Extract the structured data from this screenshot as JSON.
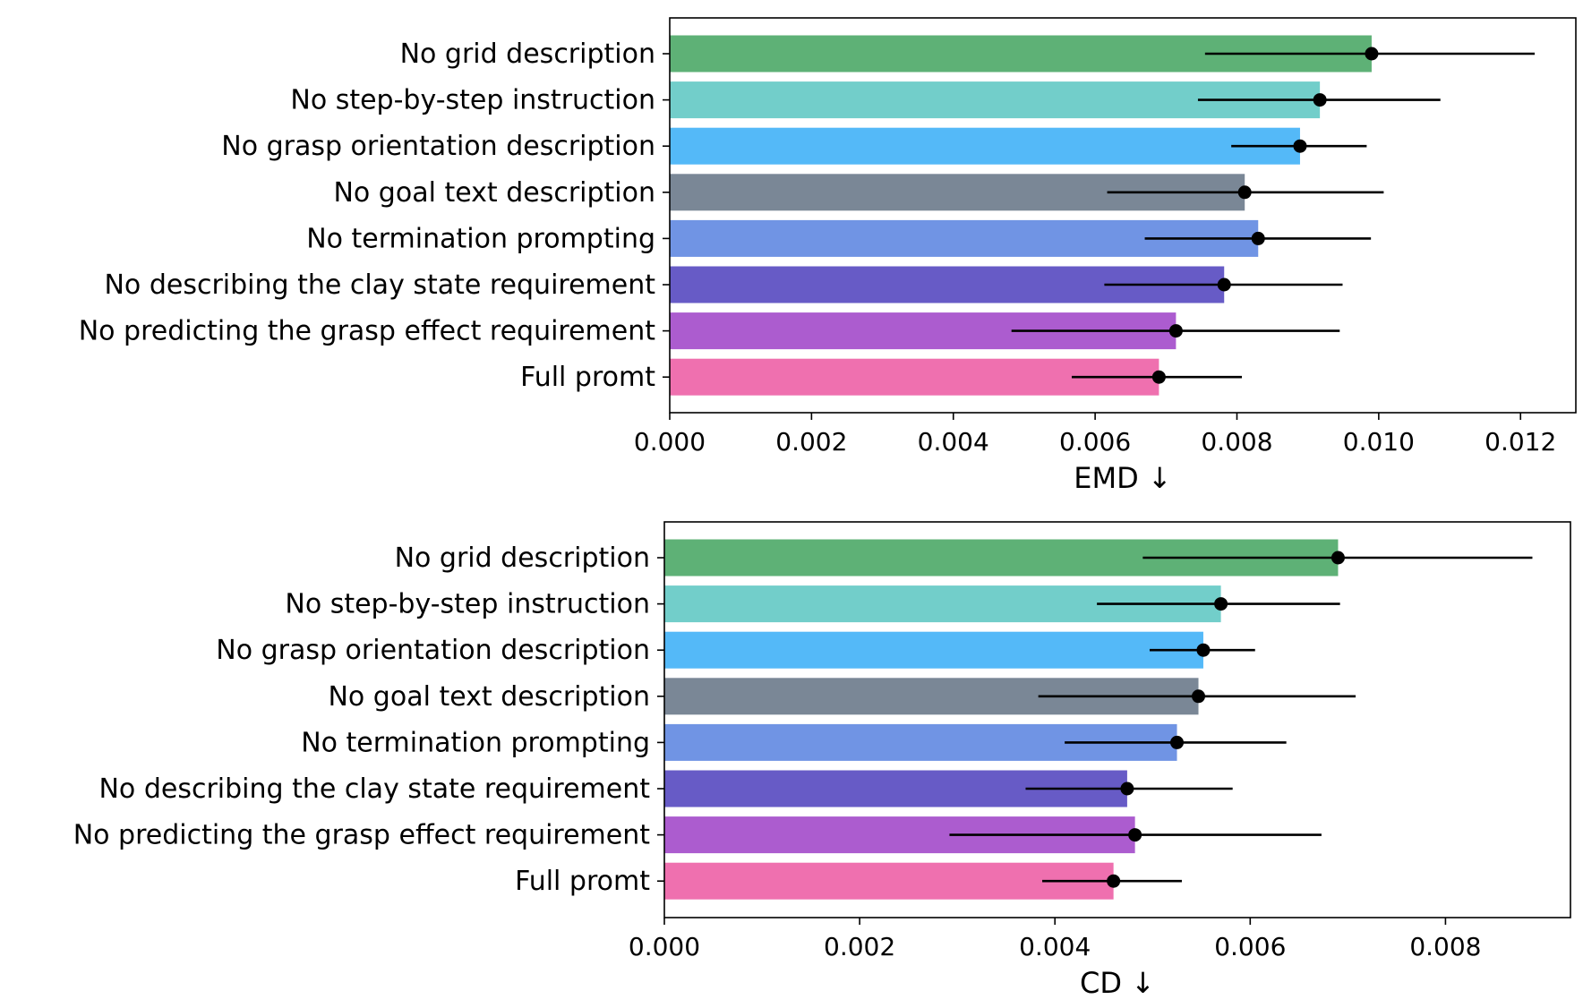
{
  "chart_data": [
    {
      "type": "bar",
      "orientation": "horizontal",
      "xlabel": "EMD ↓",
      "xlim": [
        0,
        0.01278
      ],
      "xticks": [
        "0.000",
        "0.002",
        "0.004",
        "0.006",
        "0.008",
        "0.010",
        "0.012"
      ],
      "xtick_values": [
        0,
        0.002,
        0.004,
        0.006,
        0.008,
        0.01,
        0.012
      ],
      "categories": [
        "No grid description",
        "No step-by-step instruction",
        "No grasp orientation description",
        "No goal text description",
        "No termination prompting",
        "No describing the clay state requirement",
        "No predicting the grasp effect requirement",
        "Full promt"
      ],
      "values": [
        0.0099,
        0.00917,
        0.00889,
        0.00811,
        0.0083,
        0.00782,
        0.00714,
        0.0069
      ],
      "error_low": [
        0.00755,
        0.00745,
        0.00792,
        0.00617,
        0.0067,
        0.00613,
        0.00482,
        0.00567
      ],
      "error_high": [
        0.0122,
        0.01087,
        0.00983,
        0.01007,
        0.00989,
        0.00949,
        0.00945,
        0.00807
      ],
      "colors": [
        "#5eb176",
        "#72ceca",
        "#54b9f8",
        "#7a8796",
        "#7094e4",
        "#675bc6",
        "#ac5ccf",
        "#ef70af"
      ]
    },
    {
      "type": "bar",
      "orientation": "horizontal",
      "xlabel": "CD ↓",
      "xlim": [
        0,
        0.00928
      ],
      "xticks": [
        "0.000",
        "0.002",
        "0.004",
        "0.006",
        "0.008"
      ],
      "xtick_values": [
        0,
        0.002,
        0.004,
        0.006,
        0.008
      ],
      "categories": [
        "No grid description",
        "No step-by-step instruction",
        "No grasp orientation description",
        "No goal text description",
        "No termination prompting",
        "No describing the clay state requirement",
        "No predicting the grasp effect requirement",
        "Full promt"
      ],
      "values": [
        0.0069,
        0.0057,
        0.00552,
        0.00547,
        0.00525,
        0.00474,
        0.00482,
        0.0046
      ],
      "error_low": [
        0.0049,
        0.00443,
        0.00497,
        0.00383,
        0.0041,
        0.0037,
        0.00292,
        0.00387
      ],
      "error_high": [
        0.00889,
        0.00692,
        0.00605,
        0.00708,
        0.00637,
        0.00582,
        0.00673,
        0.0053
      ],
      "colors": [
        "#5eb176",
        "#72ceca",
        "#54b9f8",
        "#7a8796",
        "#7094e4",
        "#675bc6",
        "#ac5ccf",
        "#ef70af"
      ]
    }
  ]
}
